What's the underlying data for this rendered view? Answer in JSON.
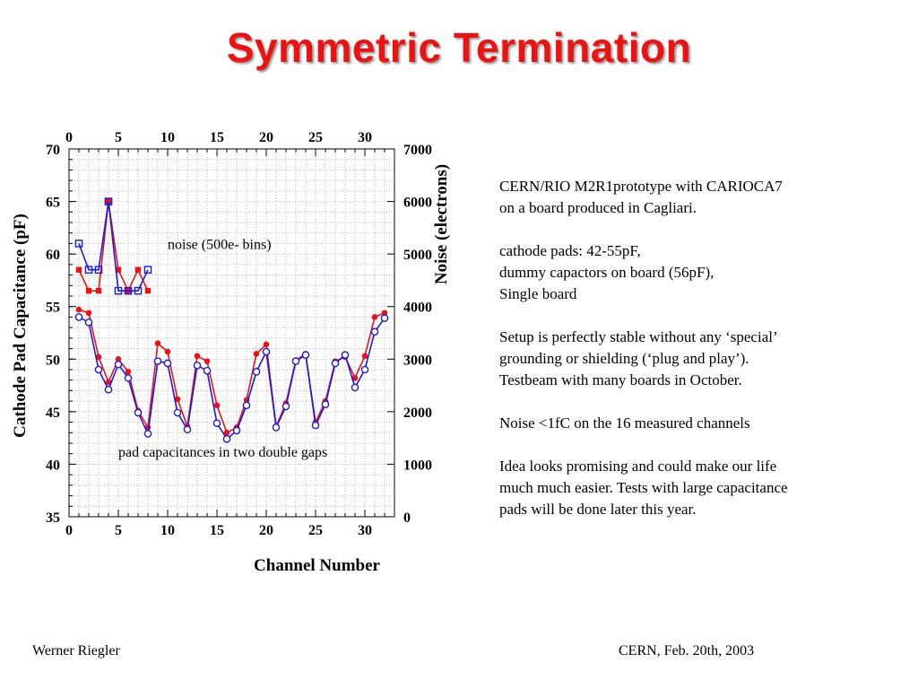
{
  "slide": {
    "title": "Symmetric Termination",
    "footer_left": "Werner Riegler",
    "footer_right": "CERN, Feb. 20th, 2003",
    "notes": [
      [
        "CERN/RIO M2R1prototype with CARIOCA7",
        "on a board produced in Cagliari."
      ],
      [
        "cathode pads: 42-55pF,",
        "dummy capactors on board (56pF),",
        "Single board"
      ],
      [
        "Setup is perfectly stable without any ‘special’",
        "grounding or shielding (‘plug and play’).",
        "Testbeam with many boards in October."
      ],
      [
        "Noise <1fC on the 16 measured channels"
      ],
      [
        "Idea looks promising and could make our life",
        "much much easier. Tests with large capacitance",
        "pads will be done later this year."
      ]
    ]
  },
  "chart_data": {
    "type": "line",
    "xlabel": "Channel Number",
    "ylabel_left": "Cathode Pad Capacitance (pF)",
    "ylabel_right": "Noise (electrons)",
    "xlim": [
      0,
      33
    ],
    "ylim_left": [
      35,
      70
    ],
    "ylim_right": [
      0,
      7000
    ],
    "x_ticks": [
      0,
      5,
      10,
      15,
      20,
      25,
      30
    ],
    "y_ticks_left": [
      35,
      40,
      45,
      50,
      55,
      60,
      65,
      70
    ],
    "y_ticks_right": [
      0,
      1000,
      2000,
      3000,
      4000,
      5000,
      6000,
      7000
    ],
    "grid": true,
    "annotations": [
      "noise (500e- bins)",
      "pad capacitances in two double gaps"
    ],
    "colors": {
      "red": "#ee1111",
      "blue": "#1a1ae6",
      "grid": "#bbbbbb"
    },
    "series": [
      {
        "marker": "filled-circle",
        "color": "red",
        "axis": "left",
        "x": [
          1,
          2,
          3,
          4,
          5,
          6,
          7,
          8,
          9,
          10,
          11,
          12,
          13,
          14,
          15,
          16,
          17,
          18,
          19,
          20,
          21,
          22,
          23,
          24,
          25,
          26,
          27,
          28,
          29,
          30,
          31,
          32
        ],
        "y": [
          54.7,
          54.4,
          50.2,
          47.8,
          50.0,
          48.8,
          45.1,
          43.5,
          51.5,
          50.7,
          46.2,
          43.6,
          50.3,
          49.8,
          45.6,
          43.0,
          43.5,
          46.1,
          50.5,
          51.4,
          43.6,
          45.8,
          49.9,
          50.5,
          44.0,
          46.0,
          49.8,
          50.2,
          48.2,
          50.3,
          54.0,
          54.4
        ]
      },
      {
        "marker": "open-circle",
        "color": "blue",
        "axis": "left",
        "x": [
          1,
          2,
          3,
          4,
          5,
          6,
          7,
          8,
          9,
          10,
          11,
          12,
          13,
          14,
          15,
          16,
          17,
          18,
          19,
          20,
          21,
          22,
          23,
          24,
          25,
          26,
          27,
          28,
          29,
          30,
          31,
          32
        ],
        "y": [
          54.0,
          53.5,
          49.0,
          47.1,
          49.5,
          48.2,
          44.9,
          42.9,
          49.8,
          49.6,
          44.9,
          43.3,
          49.4,
          48.9,
          43.9,
          42.4,
          43.2,
          45.6,
          48.8,
          50.7,
          43.5,
          45.5,
          49.8,
          50.4,
          43.7,
          45.7,
          49.6,
          50.4,
          47.3,
          49.0,
          52.6,
          53.9
        ]
      },
      {
        "marker": "filled-square",
        "color": "red",
        "axis": "right",
        "x": [
          1,
          2,
          3,
          4,
          5,
          6,
          7,
          8
        ],
        "y": [
          4700,
          4300,
          4300,
          6000,
          4700,
          4300,
          4700,
          4300
        ]
      },
      {
        "marker": "open-square",
        "color": "blue",
        "axis": "right",
        "x": [
          1,
          2,
          3,
          4,
          5,
          6,
          7,
          8
        ],
        "y": [
          5200,
          4700,
          4700,
          6000,
          4300,
          4300,
          4300,
          4700
        ]
      }
    ]
  }
}
